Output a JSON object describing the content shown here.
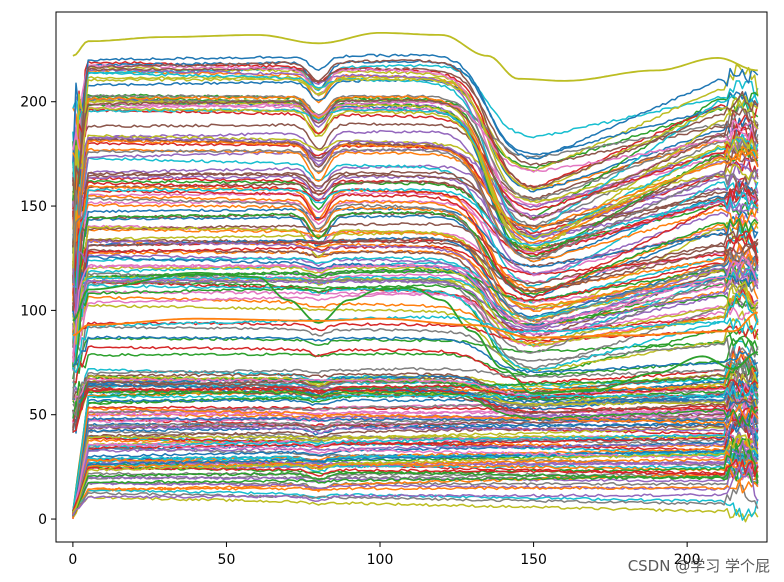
{
  "chart_data": {
    "type": "line",
    "title": "",
    "xlabel": "",
    "ylabel": "",
    "xlim": [
      -5.5,
      226
    ],
    "ylim": [
      -11,
      243
    ],
    "xticks": [
      0,
      50,
      100,
      150,
      200
    ],
    "yticks": [
      0,
      50,
      100,
      150,
      200
    ],
    "xtick_labels": [
      "0",
      "50",
      "100",
      "150",
      "200"
    ],
    "ytick_labels": [
      "0",
      "50",
      "100",
      "150",
      "200"
    ],
    "grid": false,
    "legend": "none",
    "series_count": 200,
    "x_range": [
      0,
      223
    ],
    "colors": [
      "#1f77b4",
      "#ff7f0e",
      "#2ca02c",
      "#d62728",
      "#9467bd",
      "#8c564b",
      "#e377c2",
      "#7f7f7f",
      "#bcbd22",
      "#17becf"
    ],
    "profile_note": "Each series: rapid rise 0-5, near-flat plateau, dip near x=80 for high curves, steep drop between x=120 and x=145 for curves above ~100, trough near x=155, gradual rise toward x=210, noisy spike and fall 215-223.",
    "highlight_series": [
      {
        "color": "#bcbd22",
        "points": [
          [
            0,
            222
          ],
          [
            5,
            229
          ],
          [
            30,
            231
          ],
          [
            60,
            232
          ],
          [
            80,
            228
          ],
          [
            100,
            233
          ],
          [
            120,
            232
          ],
          [
            135,
            222
          ],
          [
            145,
            211
          ],
          [
            160,
            210
          ],
          [
            190,
            215
          ],
          [
            210,
            221
          ],
          [
            223,
            215
          ]
        ]
      },
      {
        "color": "#2ca02c",
        "points": [
          [
            0,
            95
          ],
          [
            5,
            110
          ],
          [
            40,
            118
          ],
          [
            60,
            116
          ],
          [
            70,
            105
          ],
          [
            80,
            94
          ],
          [
            90,
            105
          ],
          [
            100,
            110
          ],
          [
            110,
            111
          ],
          [
            120,
            105
          ],
          [
            130,
            90
          ],
          [
            140,
            72
          ],
          [
            150,
            60
          ],
          [
            170,
            62
          ],
          [
            190,
            70
          ],
          [
            205,
            78
          ],
          [
            215,
            72
          ],
          [
            223,
            80
          ]
        ]
      },
      {
        "color": "#ff7f0e",
        "points": [
          [
            0,
            88
          ],
          [
            5,
            93
          ],
          [
            40,
            96
          ],
          [
            80,
            95
          ],
          [
            100,
            96
          ],
          [
            130,
            93
          ],
          [
            150,
            87
          ],
          [
            180,
            88
          ],
          [
            215,
            90
          ],
          [
            223,
            99
          ]
        ]
      }
    ]
  },
  "watermark": "CSDN @学习 学个屁"
}
